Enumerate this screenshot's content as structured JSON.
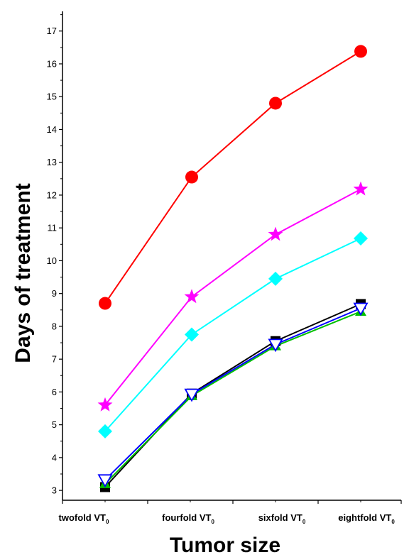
{
  "chart_data": {
    "type": "line",
    "title": "",
    "xlabel": "Tumor size",
    "ylabel": "Days of treatment",
    "categories": [
      {
        "label": "twofold VT",
        "sub": "0"
      },
      {
        "label": "fourfold VT",
        "sub": "0"
      },
      {
        "label": "sixfold VT",
        "sub": "0"
      },
      {
        "label": "eightfold VT",
        "sub": "0"
      }
    ],
    "ylim": [
      2.7,
      17.6
    ],
    "yticks": [
      3,
      4,
      5,
      6,
      7,
      8,
      9,
      10,
      11,
      12,
      13,
      14,
      15,
      16,
      17
    ],
    "grid": false,
    "legend": "none",
    "series": [
      {
        "marker": "circle",
        "color": "#ff0000",
        "values": [
          8.7,
          12.55,
          14.8,
          16.38
        ]
      },
      {
        "marker": "star",
        "color": "#ff00ff",
        "values": [
          5.6,
          8.9,
          10.8,
          12.18
        ]
      },
      {
        "marker": "diamond",
        "color": "#00ffff",
        "values": [
          4.8,
          7.75,
          9.45,
          10.68
        ]
      },
      {
        "marker": "square",
        "color": "#000000",
        "values": [
          3.1,
          5.95,
          7.55,
          8.68
        ]
      },
      {
        "marker": "triangle-up",
        "color": "#00c000",
        "values": [
          3.2,
          5.88,
          7.4,
          8.45
        ]
      },
      {
        "marker": "triangle-down",
        "color": "#0000ff",
        "values": [
          3.32,
          5.93,
          7.45,
          8.55
        ]
      }
    ]
  }
}
